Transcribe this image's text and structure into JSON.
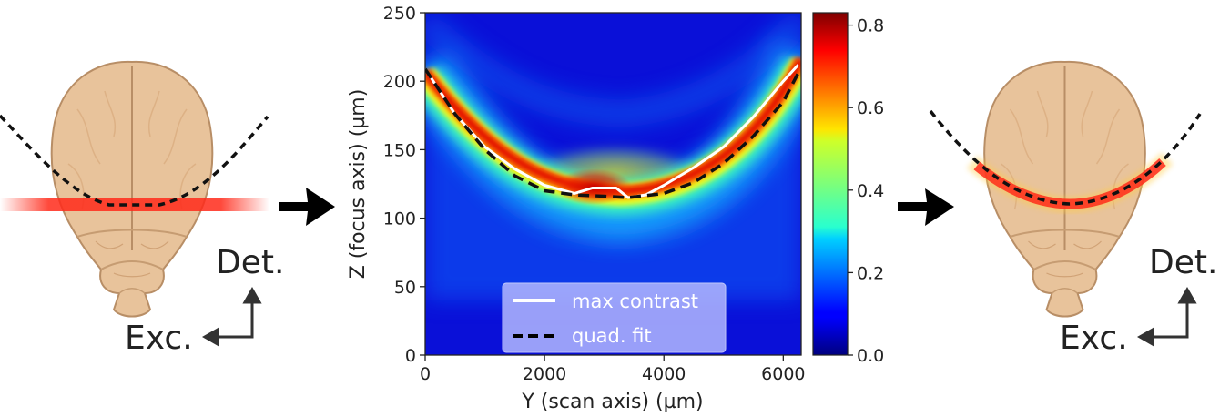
{
  "colors": {
    "brain_fill": "#e8c39b",
    "brain_edge": "#b88e66",
    "excitation_sheet": "#ff2a1a",
    "arrow": "#000000",
    "dashed_curve": "#111111",
    "max_contrast_line": "#ffffff",
    "legend_bg": "#b3b8ff"
  },
  "left_panel": {
    "detection_label": "Det.",
    "excitation_label": "Exc.",
    "sheet": "flat light sheet",
    "brain_icon": "brain-top-view-icon"
  },
  "right_panel": {
    "detection_label": "Det.",
    "excitation_label": "Exc.",
    "sheet": "curved light sheet",
    "brain_icon": "brain-top-view-icon"
  },
  "flow_arrows": [
    "arrow-right-icon",
    "arrow-right-icon"
  ],
  "chart_data": {
    "type": "heatmap",
    "xlabel": "Y (scan axis) (µm)",
    "ylabel": "Z (focus axis) (µm)",
    "xlim": [
      0,
      6300
    ],
    "ylim": [
      0,
      250
    ],
    "xticks": [
      0,
      2000,
      4000,
      6000
    ],
    "yticks": [
      0,
      50,
      100,
      150,
      200,
      250
    ],
    "colorbar": {
      "colormap": "jet",
      "range": [
        0.0,
        0.83
      ],
      "ticks": [
        "0.0",
        "0.2",
        "0.4",
        "0.6",
        "0.8"
      ]
    },
    "legend": {
      "position": "lower-center",
      "entries": [
        {
          "label": "max contrast",
          "style": "solid white line"
        },
        {
          "label": "quad. fit",
          "style": "dashed black line"
        }
      ]
    },
    "series": [
      {
        "name": "max contrast",
        "x": [
          0,
          500,
          1000,
          1500,
          2000,
          2500,
          2800,
          3200,
          3400,
          3700,
          4000,
          4500,
          5000,
          5500,
          6000,
          6250
        ],
        "y": [
          209,
          176,
          152,
          136,
          124,
          118,
          122,
          122,
          115,
          117,
          124,
          137,
          152,
          174,
          200,
          212
        ]
      },
      {
        "name": "quad. fit",
        "vertex": {
          "x": 3400,
          "y": 115
        },
        "x": [
          0,
          500,
          1000,
          1500,
          2000,
          2500,
          3000,
          3400,
          4000,
          4500,
          5000,
          5500,
          6000,
          6250
        ],
        "y": [
          209,
          176,
          150,
          131,
          120,
          117,
          116,
          115,
          118,
          126,
          140,
          160,
          185,
          206
        ]
      }
    ],
    "intensity_ridge": {
      "description": "high-contrast band follows the parabola, peak ~0.83 near x=2900, z=122",
      "peak_value": 0.83
    }
  }
}
